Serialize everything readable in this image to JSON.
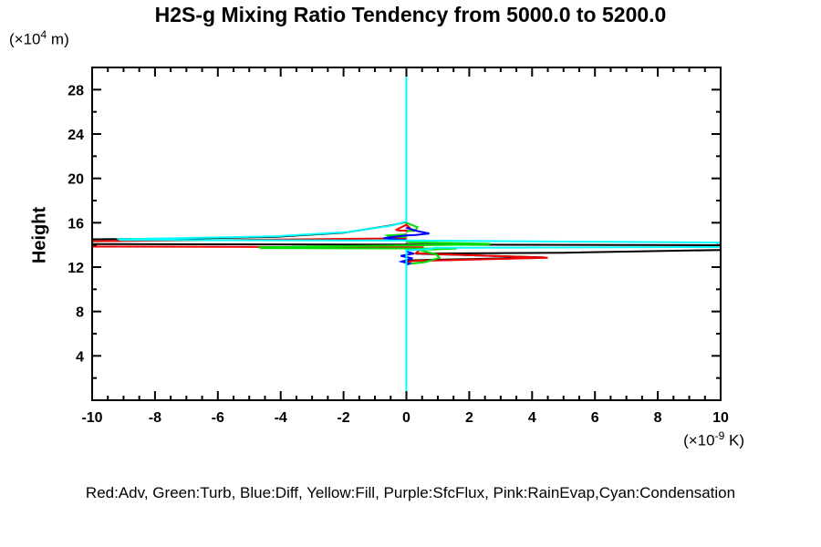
{
  "title": "H2S-g Mixing Ratio Tendency from 5000.0 to 5200.0",
  "labels": {
    "y_axis_title": "Height",
    "y_unit_prefix": "(×10",
    "y_unit_sup": "4",
    "y_unit_suffix": " m)",
    "x_unit_prefix": "(×10",
    "x_unit_sup": "-9",
    "x_unit_suffix": " K)"
  },
  "legend_text": "Red:Adv, Green:Turb, Blue:Diff, Yellow:Fill, Purple:SfcFlux, Pink:RainEvap,Cyan:Condensation",
  "chart_data": {
    "type": "line",
    "title": "H2S-g Mixing Ratio Tendency from 5000.0 to 5200.0",
    "xlabel": "(×10^-9 K)",
    "ylabel": "Height (×10^4 m)",
    "xlim": [
      -10,
      10
    ],
    "ylim": [
      0,
      30
    ],
    "x_major_ticks": [
      -10,
      -8,
      -6,
      -4,
      -2,
      0,
      2,
      4,
      6,
      8,
      10
    ],
    "x_minor_step": 0.5,
    "y_major_ticks": [
      4,
      8,
      12,
      16,
      20,
      24,
      28
    ],
    "y_minor_step": 2,
    "grid": false,
    "legend_position": "bottom-text-line",
    "note": "Vertical profiles of mixing-ratio tendency vs height; all curves ~0 except in layer h=12-16; yellow/purple/pink coincide with zero line; unlabeled black curve also plotted",
    "series": [
      {
        "name": "Fill",
        "color": "#ffff00",
        "segments": [
          [
            [
              0,
              30
            ],
            [
              0,
              0
            ]
          ]
        ]
      },
      {
        "name": "SfcFlux",
        "color": "#aa00ff",
        "segments": [
          [
            [
              0,
              30
            ],
            [
              0,
              0
            ]
          ]
        ]
      },
      {
        "name": "RainEvap",
        "color": "#ff80c0",
        "segments": [
          [
            [
              0,
              30
            ],
            [
              0,
              0
            ]
          ]
        ]
      },
      {
        "name": "black-unlabeled",
        "color": "#000000",
        "segments": [
          [
            [
              0,
              16.07
            ],
            [
              -0.5,
              15.75
            ],
            [
              -2,
              15.1
            ],
            [
              -4.2,
              14.72
            ],
            [
              -7,
              14.57
            ],
            [
              -10.5,
              14.5
            ]
          ],
          [
            [
              -10.5,
              14.08
            ],
            [
              0,
              14.03
            ],
            [
              10.5,
              13.97
            ]
          ],
          [
            [
              10.5,
              13.57
            ],
            [
              5,
              13.3
            ],
            [
              0.3,
              13.22
            ],
            [
              4.4,
              12.87
            ],
            [
              0.25,
              12.62
            ],
            [
              0,
              12.5
            ]
          ]
        ]
      },
      {
        "name": "Adv",
        "color": "#f00000",
        "segments": [
          [
            [
              -0.35,
              15.33
            ],
            [
              0,
              15.82
            ],
            [
              0.2,
              15.27
            ],
            [
              -0.3,
              15.31
            ]
          ],
          [
            [
              0,
              14.6
            ],
            [
              -10.5,
              14.32
            ]
          ],
          [
            [
              -10.5,
              13.86
            ],
            [
              0.5,
              13.78
            ],
            [
              0.3,
              13.25
            ],
            [
              4.5,
              12.84
            ],
            [
              0.2,
              12.55
            ],
            [
              0,
              12.42
            ]
          ]
        ]
      },
      {
        "name": "Turb",
        "color": "#00dd00",
        "segments": [
          [
            [
              0,
              16.0
            ],
            [
              0.35,
              15.6
            ],
            [
              0.3,
              15.35
            ],
            [
              0,
              15.22
            ]
          ],
          [
            [
              0,
              14.95
            ],
            [
              -0.6,
              14.85
            ],
            [
              -0.55,
              14.78
            ],
            [
              0,
              14.7
            ]
          ],
          [
            [
              0,
              14.25
            ],
            [
              2.67,
              14.1
            ],
            [
              2.6,
              14.05
            ],
            [
              -4.7,
              13.78
            ],
            [
              -4.6,
              13.72
            ],
            [
              1.6,
              13.68
            ],
            [
              0.4,
              13.55
            ],
            [
              0.95,
              13.15
            ],
            [
              1.05,
              12.85
            ],
            [
              0.6,
              12.45
            ],
            [
              0,
              12.27
            ]
          ]
        ]
      },
      {
        "name": "Diff",
        "color": "#0000ff",
        "segments": [
          [
            [
              0,
              15.55
            ],
            [
              0.35,
              15.25
            ],
            [
              0.73,
              15.03
            ],
            [
              0.3,
              14.9
            ],
            [
              0,
              14.85
            ],
            [
              -0.45,
              14.72
            ],
            [
              -0.73,
              14.6
            ],
            [
              -0.3,
              14.5
            ],
            [
              0,
              14.45
            ]
          ],
          [
            [
              0,
              13.4
            ],
            [
              0.24,
              13.22
            ],
            [
              -0.18,
              13.02
            ],
            [
              0.2,
              12.78
            ],
            [
              -0.15,
              12.5
            ],
            [
              0.1,
              12.32
            ],
            [
              0,
              12.2
            ]
          ]
        ]
      },
      {
        "name": "Condensation",
        "color": "#00ffff",
        "segments": [
          [
            [
              0,
              30
            ],
            [
              0,
              16.1
            ],
            [
              -0.5,
              15.72
            ],
            [
              -1.9,
              15.16
            ],
            [
              -4.2,
              14.78
            ],
            [
              -7,
              14.62
            ],
            [
              -9.15,
              14.52
            ],
            [
              -9.1,
              14.44
            ],
            [
              0,
              14.4
            ],
            [
              10.5,
              14.2
            ]
          ],
          [
            [
              10.5,
              13.82
            ],
            [
              0.9,
              13.74
            ],
            [
              0.75,
              13.62
            ],
            [
              0,
              13.52
            ],
            [
              0,
              0
            ]
          ]
        ]
      }
    ]
  }
}
